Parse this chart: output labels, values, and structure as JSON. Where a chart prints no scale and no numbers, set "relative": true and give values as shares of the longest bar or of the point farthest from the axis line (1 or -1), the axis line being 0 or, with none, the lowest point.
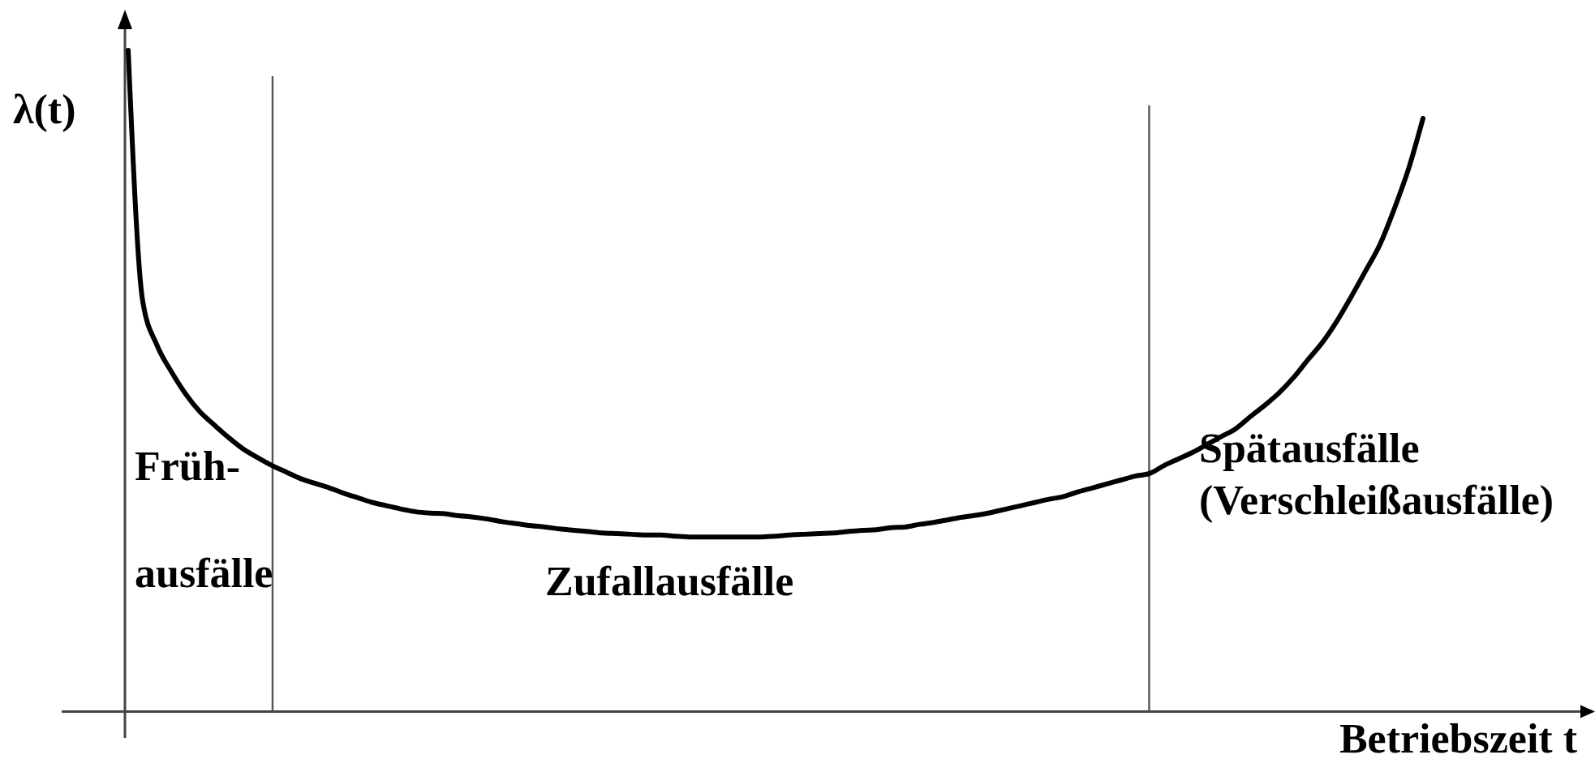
{
  "chart_data": {
    "type": "line",
    "relative": true,
    "xlabel": "Betriebszeit t",
    "ylabel": "λ(t)",
    "annotations": [
      "Früh-",
      "ausfälle",
      "Zufallausfälle",
      "Spätausfälle",
      "(Verschleißausfälle)"
    ],
    "categories": [
      null,
      null,
      null,
      null,
      null,
      null,
      null,
      null,
      null,
      null,
      null,
      null,
      null,
      null,
      null,
      null,
      null,
      null,
      null,
      null,
      null,
      null,
      null,
      null,
      null,
      null,
      null,
      null,
      null,
      null,
      null,
      null,
      null,
      null,
      null,
      null,
      null,
      null,
      null,
      null,
      null,
      null,
      null,
      null,
      null,
      null,
      null,
      null,
      null,
      null,
      null,
      null,
      null,
      null,
      null,
      null,
      null,
      null,
      null,
      null,
      null,
      null,
      null,
      null,
      null,
      null,
      null,
      null,
      null,
      null,
      null,
      null,
      null,
      null,
      null,
      null,
      null,
      null,
      null,
      null,
      null,
      null,
      null,
      null,
      null,
      null,
      null,
      null,
      null,
      null,
      null
    ],
    "series": [
      {
        "color": "#000000",
        "values": [
          1.0,
          0.622,
          0.554,
          0.514,
          0.48,
          0.453,
          0.433,
          0.414,
          0.397,
          0.384,
          0.372,
          0.362,
          0.352,
          0.345,
          0.338,
          0.33,
          0.323,
          0.316,
          0.311,
          0.306,
          0.302,
          0.3,
          0.299,
          0.296,
          0.294,
          0.291,
          0.287,
          0.284,
          0.281,
          0.279,
          0.276,
          0.274,
          0.272,
          0.27,
          0.269,
          0.268,
          0.267,
          0.267,
          0.265,
          0.264,
          0.264,
          0.264,
          0.264,
          0.264,
          0.264,
          0.265,
          0.267,
          0.268,
          0.269,
          0.27,
          0.272,
          0.274,
          0.275,
          0.278,
          0.279,
          0.283,
          0.286,
          0.29,
          0.294,
          0.297,
          0.301,
          0.306,
          0.311,
          0.316,
          0.321,
          0.325,
          0.332,
          0.338,
          0.344,
          0.35,
          0.356,
          0.36,
          0.372,
          0.382,
          0.392,
          0.404,
          0.416,
          0.428,
          0.446,
          0.463,
          0.482,
          0.505,
          0.532,
          0.558,
          0.59,
          0.627,
          0.666,
          0.706,
          0.76,
          0.821,
          0.897
        ]
      }
    ]
  }
}
